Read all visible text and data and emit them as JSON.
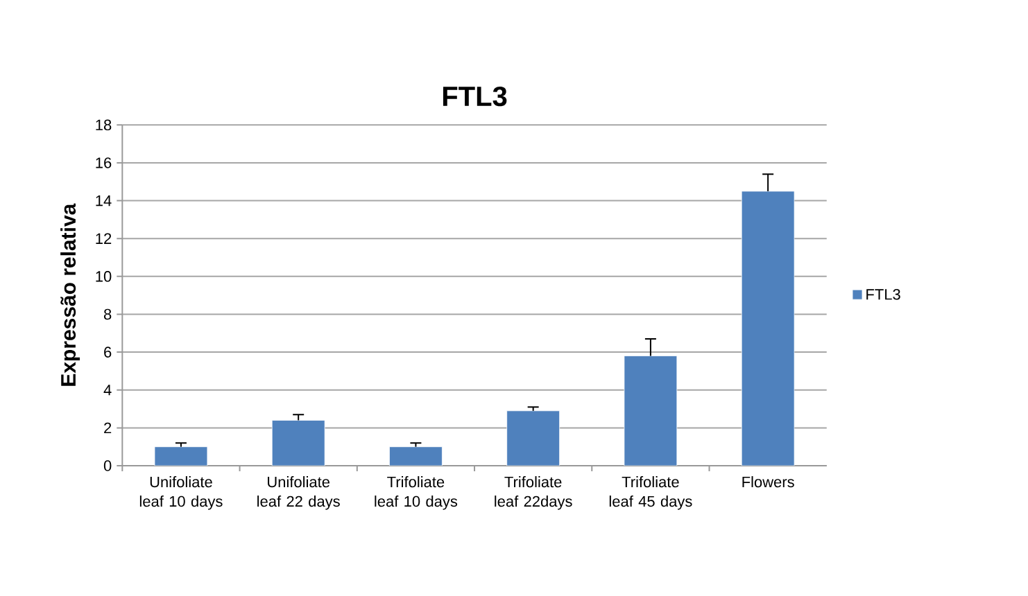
{
  "chart_data": {
    "type": "bar",
    "title": "FTL3",
    "ylabel": "Expressão relativa",
    "categories": [
      "Unifoliate leaf 10 days",
      "Unifoliate leaf 22 days",
      "Trifoliate leaf 10 days",
      "Trifoliate leaf 22days",
      "Trifoliate leaf 45 days",
      "Flowers"
    ],
    "series": [
      {
        "name": "FTL3",
        "color": "#4f81bd",
        "values": [
          1.0,
          2.4,
          1.0,
          2.9,
          5.8,
          14.5
        ],
        "errors": [
          [
            1.0,
            1.2
          ],
          [
            2.4,
            2.7
          ],
          [
            1.0,
            1.2
          ],
          [
            2.9,
            3.1
          ],
          [
            5.8,
            6.7
          ],
          [
            14.5,
            15.4
          ]
        ]
      }
    ],
    "ylim": [
      0,
      18
    ],
    "yticks": [
      0,
      2,
      4,
      6,
      8,
      10,
      12,
      14,
      16,
      18
    ],
    "grid": "y",
    "legend": "right"
  }
}
